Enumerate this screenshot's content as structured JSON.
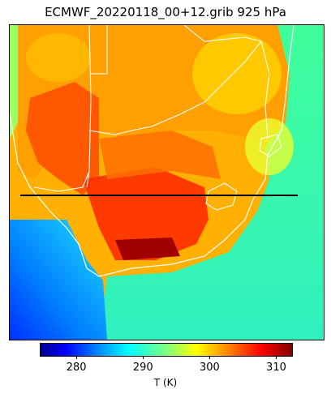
{
  "title": "ECMWF_20220118_00+12.grib 925 hPa",
  "colorbar": {
    "label": "T (K)",
    "min": 274.5,
    "max": 312.5,
    "ticks": [
      280,
      290,
      300,
      310
    ],
    "tick_labels": [
      "280",
      "290",
      "300",
      "310"
    ]
  },
  "colors": {
    "coastline": "#ffffff",
    "borders": "#ffffff",
    "section_line": "#000000"
  }
}
